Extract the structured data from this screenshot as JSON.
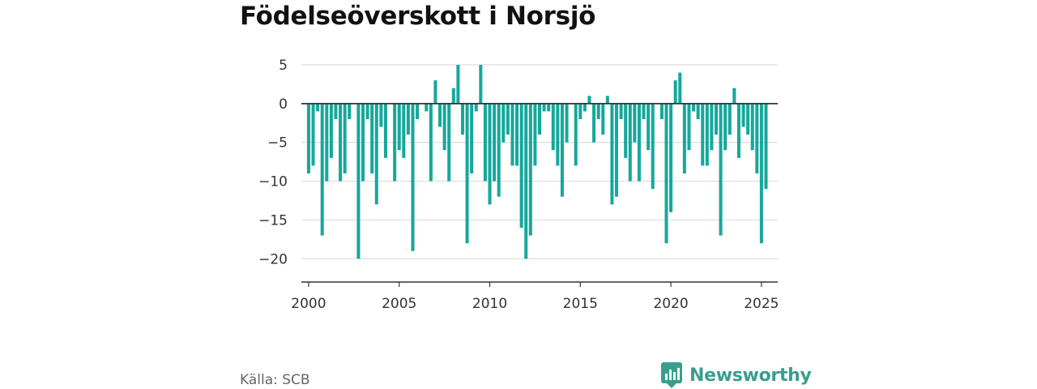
{
  "title": "Födelseöverskott i Norsjö",
  "source": "Källa: SCB",
  "brand": {
    "name": "Newsworthy",
    "icon": "newsworthy-logo-icon",
    "color": "#3a9e8f"
  },
  "chart_data": {
    "type": "bar",
    "title": "Födelseöverskott i Norsjö",
    "xlabel": "",
    "ylabel": "",
    "bar_color": "#15a89b",
    "grid": true,
    "ylim": [
      -23,
      5
    ],
    "yticks": [
      5,
      0,
      -5,
      -10,
      -15,
      -20
    ],
    "ytick_labels": [
      "5",
      "0",
      "−5",
      "−10",
      "−15",
      "−20"
    ],
    "xlim": [
      1999.6,
      2025.9
    ],
    "xticks": [
      2000,
      2005,
      2010,
      2015,
      2020,
      2025
    ],
    "xtick_labels": [
      "2000",
      "2005",
      "2010",
      "2015",
      "2020",
      "2025"
    ],
    "series": [
      {
        "start": 2000,
        "step_months": 3,
        "values": [
          -9,
          -8,
          -1,
          -17,
          -10,
          -7,
          -2,
          -10,
          -9,
          -2,
          0,
          -20,
          -10,
          -2,
          -9,
          -13,
          -3,
          -7,
          0,
          -10,
          -6,
          -7,
          -4,
          -19,
          -2,
          0,
          -1,
          -10,
          3,
          -3,
          -6,
          -10,
          2,
          5,
          -4,
          -18,
          -9,
          -1,
          5,
          -10,
          -13,
          -10,
          -12,
          -5,
          -4,
          -8,
          -8,
          -16,
          -20,
          -17,
          -8,
          -4,
          -1,
          -1,
          -6,
          -8,
          -12,
          -5,
          0,
          -8,
          -2,
          -1,
          1,
          -5,
          -2,
          -4,
          1,
          -13,
          -12,
          -2,
          -7,
          -10,
          -5,
          -10,
          -2,
          -6,
          -11,
          0,
          -2,
          -18,
          -14,
          3,
          4,
          -9,
          -6,
          -1,
          -2,
          -8,
          -8,
          -6,
          -4,
          -17,
          -6,
          -4,
          2,
          -7,
          -3,
          -4,
          -6,
          -9,
          -18,
          -11
        ]
      }
    ]
  }
}
